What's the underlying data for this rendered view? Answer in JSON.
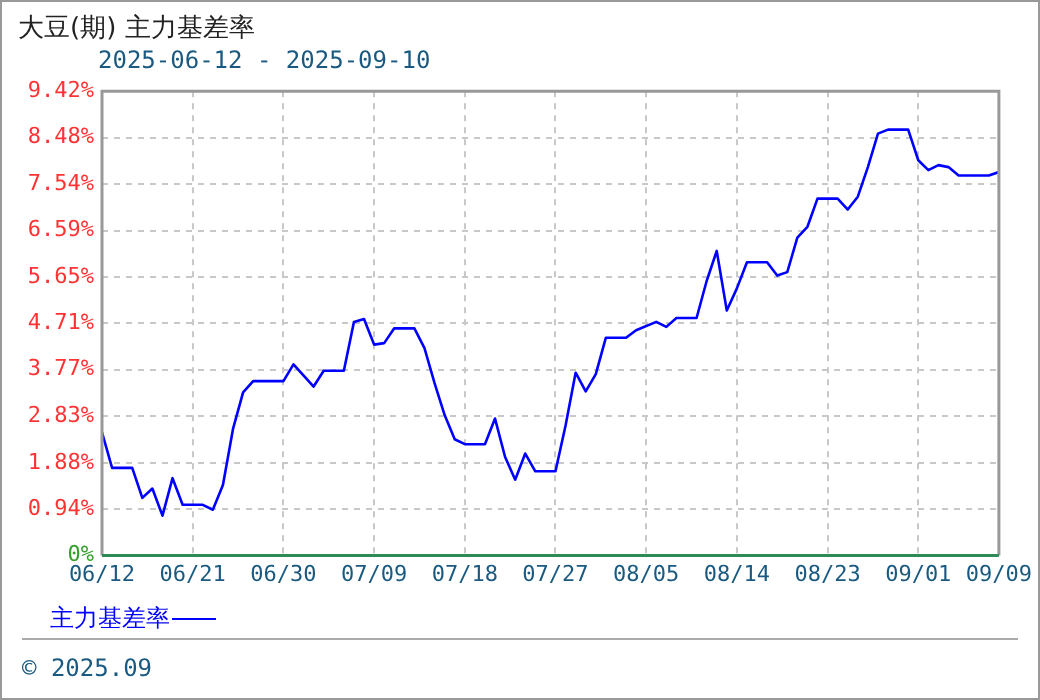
{
  "chart_data": {
    "type": "line",
    "title": "大豆(期)  主力基差率",
    "subtitle": "2025-06-12 - 2025-09-10",
    "x": [
      "2025-06-12",
      "2025-06-13",
      "2025-06-15",
      "2025-06-16",
      "2025-06-17",
      "2025-06-18",
      "2025-06-19",
      "2025-06-20",
      "2025-06-22",
      "2025-06-23",
      "2025-06-24",
      "2025-06-25",
      "2025-06-26",
      "2025-06-27",
      "2025-06-30",
      "2025-07-01",
      "2025-07-03",
      "2025-07-04",
      "2025-07-06",
      "2025-07-07",
      "2025-07-08",
      "2025-07-09",
      "2025-07-10",
      "2025-07-11",
      "2025-07-13",
      "2025-07-14",
      "2025-07-15",
      "2025-07-16",
      "2025-07-17",
      "2025-07-18",
      "2025-07-20",
      "2025-07-21",
      "2025-07-22",
      "2025-07-23",
      "2025-07-24",
      "2025-07-25",
      "2025-07-27",
      "2025-07-28",
      "2025-07-29",
      "2025-07-30",
      "2025-07-31",
      "2025-08-01",
      "2025-08-03",
      "2025-08-04",
      "2025-08-06",
      "2025-08-07",
      "2025-08-08",
      "2025-08-10",
      "2025-08-11",
      "2025-08-12",
      "2025-08-13",
      "2025-08-14",
      "2025-08-15",
      "2025-08-17",
      "2025-08-18",
      "2025-08-19",
      "2025-08-20",
      "2025-08-21",
      "2025-08-22",
      "2025-08-24",
      "2025-08-25",
      "2025-08-26",
      "2025-08-27",
      "2025-08-28",
      "2025-08-29",
      "2025-08-31",
      "2025-09-01",
      "2025-09-02",
      "2025-09-03",
      "2025-09-04",
      "2025-09-05",
      "2025-09-08",
      "2025-09-09"
    ],
    "series": [
      {
        "name": "主力基差率",
        "color": "#0000ff",
        "values": [
          2.5,
          1.78,
          1.78,
          1.17,
          1.36,
          0.81,
          1.57,
          1.03,
          1.03,
          0.93,
          1.43,
          2.57,
          3.31,
          3.54,
          3.54,
          3.88,
          3.43,
          3.75,
          3.75,
          4.74,
          4.8,
          4.28,
          4.31,
          4.61,
          4.61,
          4.21,
          3.5,
          2.85,
          2.36,
          2.26,
          2.26,
          2.78,
          2.0,
          1.54,
          2.07,
          1.71,
          1.71,
          2.64,
          3.71,
          3.33,
          3.68,
          4.42,
          4.42,
          4.57,
          4.74,
          4.64,
          4.82,
          4.82,
          5.57,
          6.18,
          4.97,
          5.42,
          5.95,
          5.95,
          5.68,
          5.75,
          6.45,
          6.67,
          7.24,
          7.24,
          7.02,
          7.28,
          7.88,
          8.56,
          8.64,
          8.64,
          8.02,
          7.82,
          7.92,
          7.88,
          7.71,
          7.71,
          7.78
        ]
      }
    ],
    "xlim": [
      "2025-06-12",
      "2025-09-09"
    ],
    "xticks": [
      {
        "value": "2025-06-12",
        "label": "06/12"
      },
      {
        "value": "2025-06-21",
        "label": "06/21"
      },
      {
        "value": "2025-06-30",
        "label": "06/30"
      },
      {
        "value": "2025-07-09",
        "label": "07/09"
      },
      {
        "value": "2025-07-18",
        "label": "07/18"
      },
      {
        "value": "2025-07-27",
        "label": "07/27"
      },
      {
        "value": "2025-08-05",
        "label": "08/05"
      },
      {
        "value": "2025-08-14",
        "label": "08/14"
      },
      {
        "value": "2025-08-23",
        "label": "08/23"
      },
      {
        "value": "2025-09-01",
        "label": "09/01"
      },
      {
        "value": "2025-09-09",
        "label": "09/09"
      }
    ],
    "ylim": [
      0,
      9.42
    ],
    "yticks": [
      {
        "value": 0,
        "label": "0%"
      },
      {
        "value": 0.94,
        "label": "0.94%"
      },
      {
        "value": 1.88,
        "label": "1.88%"
      },
      {
        "value": 2.83,
        "label": "2.83%"
      },
      {
        "value": 3.77,
        "label": "3.77%"
      },
      {
        "value": 4.71,
        "label": "4.71%"
      },
      {
        "value": 5.65,
        "label": "5.65%"
      },
      {
        "value": 6.59,
        "label": "6.59%"
      },
      {
        "value": 7.54,
        "label": "7.54%"
      },
      {
        "value": 8.48,
        "label": "8.48%"
      },
      {
        "value": 9.42,
        "label": "9.42%"
      }
    ],
    "grid": true,
    "legend": "bottom left",
    "marker": "none",
    "line_style": "solid",
    "annotations": [
      "© 2025.09"
    ]
  }
}
